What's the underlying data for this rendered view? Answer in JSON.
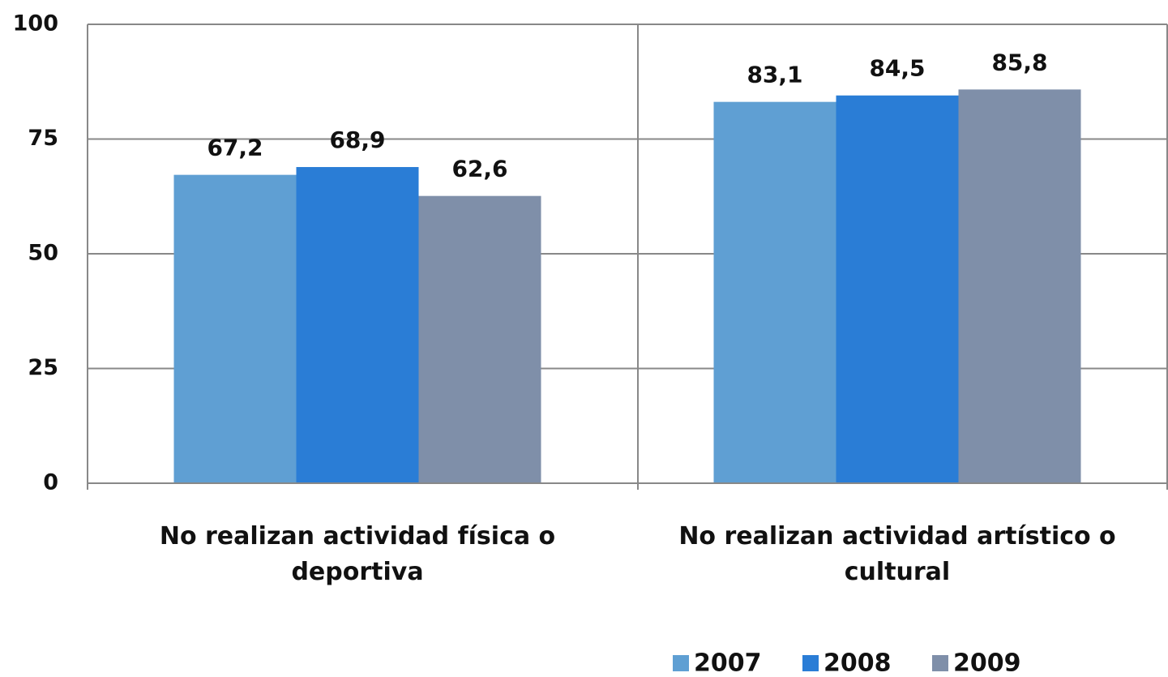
{
  "chart_data": {
    "type": "bar",
    "categories": [
      "No realizan actividad física o deportiva",
      "No realizan actividad artístico o cultural"
    ],
    "series": [
      {
        "name": "2007",
        "color": "#5f9fd3",
        "values": [
          67.2,
          83.1
        ],
        "value_labels": [
          "67,2",
          "83,1"
        ]
      },
      {
        "name": "2008",
        "color": "#2a7dd6",
        "values": [
          68.9,
          84.5
        ],
        "value_labels": [
          "68,9",
          "84,5"
        ]
      },
      {
        "name": "2009",
        "color": "#7f8fa9",
        "values": [
          62.6,
          85.8
        ],
        "value_labels": [
          "62,6",
          "85,8"
        ]
      }
    ],
    "ylim": [
      0,
      100
    ],
    "yticks": [
      0,
      25,
      50,
      75,
      100
    ],
    "grid": true,
    "legend": "bottom-right"
  }
}
